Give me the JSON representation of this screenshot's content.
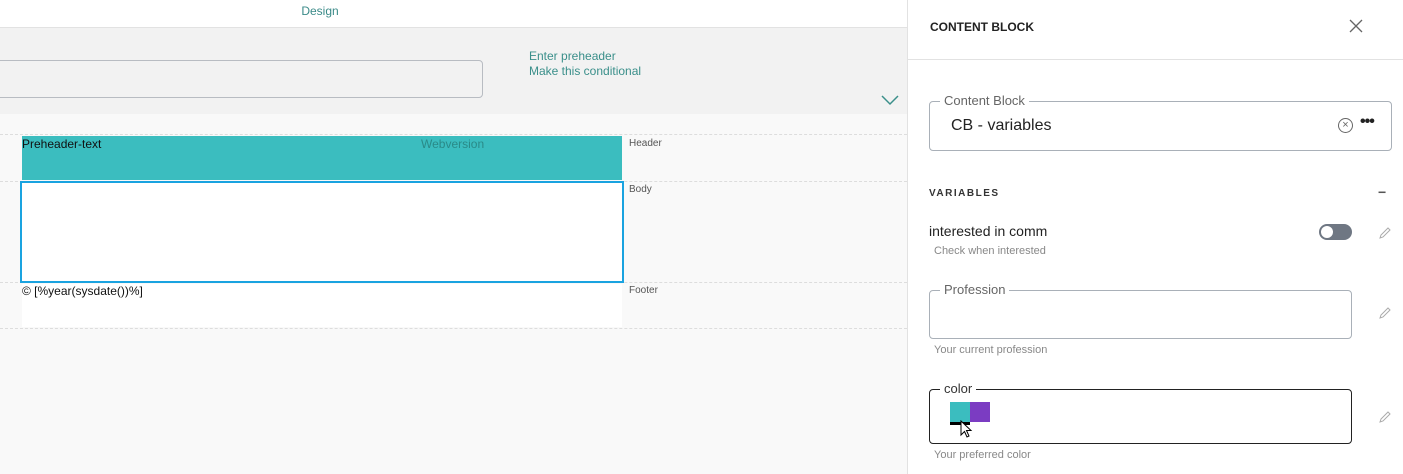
{
  "editor": {
    "tab_label": "Design",
    "preheader_links": {
      "enter": "Enter preheader",
      "conditional": "Make this conditional"
    },
    "sections": {
      "header": {
        "label": "Header",
        "preheader_text": "Preheader-text",
        "webversion": "Webversion"
      },
      "body": {
        "label": "Body"
      },
      "footer": {
        "label": "Footer",
        "text": "© [%year(sysdate())%]"
      }
    },
    "colors": {
      "header_bg": "#3bbdbf",
      "selection": "#1aa3e0",
      "link": "#3a8f8a"
    }
  },
  "panel": {
    "title": "CONTENT BLOCK",
    "content_block": {
      "label": "Content Block",
      "value": "CB - variables"
    },
    "variables_heading": "VARIABLES",
    "variables": [
      {
        "name": "interested in comm",
        "help": "Check when interested",
        "type": "toggle",
        "checked": false
      },
      {
        "label": "Profession",
        "value": "",
        "help": "Your current profession",
        "type": "text"
      },
      {
        "label": "color",
        "help": "Your preferred color",
        "type": "color",
        "swatches": [
          "#3bbdbf",
          "#7b3cc2"
        ]
      }
    ]
  }
}
